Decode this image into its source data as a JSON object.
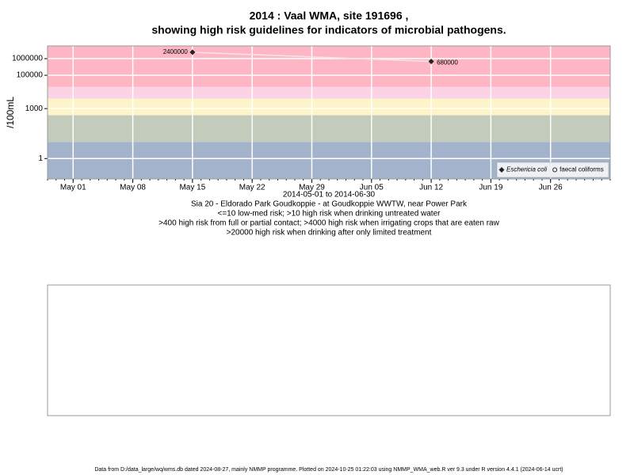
{
  "chart_data": {
    "type": "line",
    "title": "2014 : Vaal WMA, site 191696 ,",
    "subtitle": "showing high risk guidelines for indicators of microbial pathogens.",
    "y_label": "/100mL",
    "x_label": "2014-05-01 to 2014-06-30",
    "notes": [
      "Sia 20 - Eldorado Park Goudkoppie - at Goudkoppie WWTW, near Power Park",
      "<=10 low-med risk; >10 high risk when drinking untreated water",
      ">400 high risk from full or partial contact; >4000 high risk when irrigating crops that are eaten raw",
      ">20000 high risk when drinking after only limited treatment"
    ],
    "footer": "Data from D:/data_large/wq/wms.db dated 2024-08-27, mainly NMMP programme. Plotted on 2024-10-25 01:22:03 using NMMP_WMA_web.R ver 9.3 under R version 4.4.1 (2024-06-14 ucrt)",
    "log_y": true,
    "grid": true,
    "ylim": [
      0.06,
      5800000
    ],
    "yticks": [
      1,
      1000,
      100000,
      1000000
    ],
    "xlim": [
      "04-28",
      "07-03"
    ],
    "xticks": [
      {
        "value": "05-01",
        "label": "May 01"
      },
      {
        "value": "05-08",
        "label": "May 08"
      },
      {
        "value": "05-15",
        "label": "May 15"
      },
      {
        "value": "05-22",
        "label": "May 22"
      },
      {
        "value": "05-29",
        "label": "May 29"
      },
      {
        "value": "06-05",
        "label": "Jun 05"
      },
      {
        "value": "06-12",
        "label": "Jun 12"
      },
      {
        "value": "06-19",
        "label": "Jun 19"
      },
      {
        "value": "06-26",
        "label": "Jun 26"
      }
    ],
    "bands": [
      {
        "from": 0.06,
        "to": 10,
        "color": "#a3b3cc"
      },
      {
        "from": 10,
        "to": 400,
        "color": "#c3cbbd"
      },
      {
        "from": 400,
        "to": 4000,
        "color": "#fdf5c8"
      },
      {
        "from": 4000,
        "to": 20000,
        "color": "#fbd3e4"
      },
      {
        "from": 20000,
        "to": 5800000,
        "color": "#feb6c4"
      }
    ],
    "x": [
      "05-15",
      "06-12"
    ],
    "series": [
      {
        "name": "Eschericia coli",
        "color": "#222222",
        "line_color": "#f4e4ea",
        "marker": "diamond",
        "values": [
          2400000,
          680000
        ]
      },
      {
        "name": "faecal coliforms",
        "color": "#222222",
        "marker": "circle",
        "values": [
          null,
          null
        ]
      }
    ],
    "legend": "bottom-right"
  }
}
